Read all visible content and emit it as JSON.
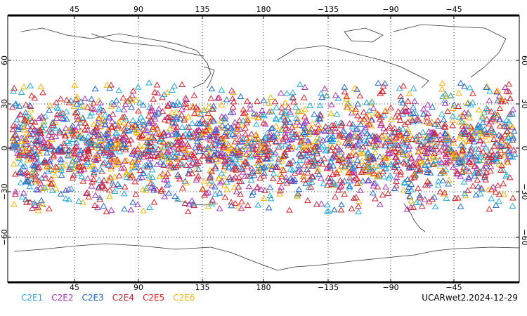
{
  "map": {
    "top_lon_labels": [
      "45",
      "90",
      "135",
      "180",
      "−135",
      "−90",
      "−45"
    ],
    "bottom_lon_labels": [
      "45",
      "90",
      "135",
      "180",
      "−135",
      "−90",
      "−45"
    ],
    "left_lat_labels": [
      "60",
      "30",
      "0",
      "−30",
      "−60"
    ],
    "right_lat_labels": [
      "60",
      "30",
      "0",
      "−30",
      "−60"
    ],
    "grid": "dotted",
    "marker": "open-triangle",
    "marker_lat_range": [
      -45,
      45
    ]
  },
  "legend": {
    "items": [
      {
        "label": "C2E1",
        "color": "#22aadd"
      },
      {
        "label": "C2E2",
        "color": "#aa33bb"
      },
      {
        "label": "C2E3",
        "color": "#2266cc"
      },
      {
        "label": "C2E4",
        "color": "#cc2233"
      },
      {
        "label": "C2E5",
        "color": "#dd2222"
      },
      {
        "label": "C2E6",
        "color": "#f2b200"
      }
    ]
  },
  "product": {
    "label": "UCARwet2.2024-12-29"
  }
}
